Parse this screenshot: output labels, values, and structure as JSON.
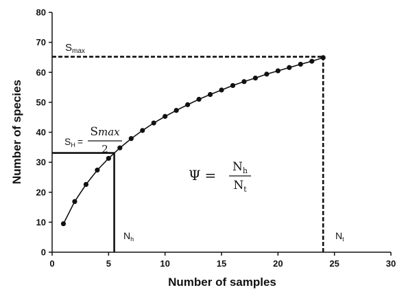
{
  "chart_data": {
    "type": "line",
    "title": "",
    "xlabel": "Number of samples",
    "ylabel": "Number of species",
    "xlim": [
      0,
      30
    ],
    "ylim": [
      0,
      80
    ],
    "xticks": [
      "0",
      "5",
      "10",
      "15",
      "20",
      "25",
      "30"
    ],
    "yticks": [
      "0",
      "10",
      "20",
      "30",
      "40",
      "50",
      "60",
      "70",
      "80"
    ],
    "grid": false,
    "legend": "none",
    "series": [
      {
        "x": [
          1,
          2,
          3,
          4,
          5,
          6,
          7,
          8,
          9,
          10,
          11,
          12,
          13,
          14,
          15,
          16,
          17,
          18,
          19,
          20,
          21,
          22,
          23,
          24
        ],
        "y": [
          9.5,
          16.9,
          22.6,
          27.4,
          31.3,
          34.8,
          37.9,
          40.6,
          43.1,
          45.3,
          47.3,
          49.2,
          51.0,
          52.6,
          54.1,
          55.6,
          56.9,
          58.1,
          59.4,
          60.5,
          61.6,
          62.7,
          63.7,
          64.9
        ]
      }
    ],
    "reference_lines": [
      {
        "from": [
          0,
          65.2
        ],
        "to": [
          24,
          65.2
        ],
        "style": "dashed"
      },
      {
        "from": [
          24,
          0
        ],
        "to": [
          24,
          65.2
        ],
        "style": "dashed"
      },
      {
        "from": [
          0,
          33.1
        ],
        "to": [
          5.5,
          33.1
        ],
        "style": "solid"
      },
      {
        "from": [
          5.5,
          0
        ],
        "to": [
          5.5,
          33.1
        ],
        "style": "solid"
      }
    ],
    "annotations": {
      "s_max": {
        "base": "S",
        "sub": "max"
      },
      "s_h": {
        "base": "S",
        "sub": "H",
        "eq": "=",
        "num_base": "S",
        "num_sub": "max",
        "den": "2"
      },
      "n_h": {
        "base": "N",
        "sub": "h"
      },
      "n_t": {
        "base": "N",
        "sub": "t"
      },
      "psi": {
        "symbol": "Ψ",
        "eq": "=",
        "num_base": "N",
        "num_sub": "h",
        "den_base": "N",
        "den_sub": "t"
      }
    },
    "colors": {
      "line": "#111111",
      "marker": "#111111",
      "axis": "#111111"
    }
  }
}
